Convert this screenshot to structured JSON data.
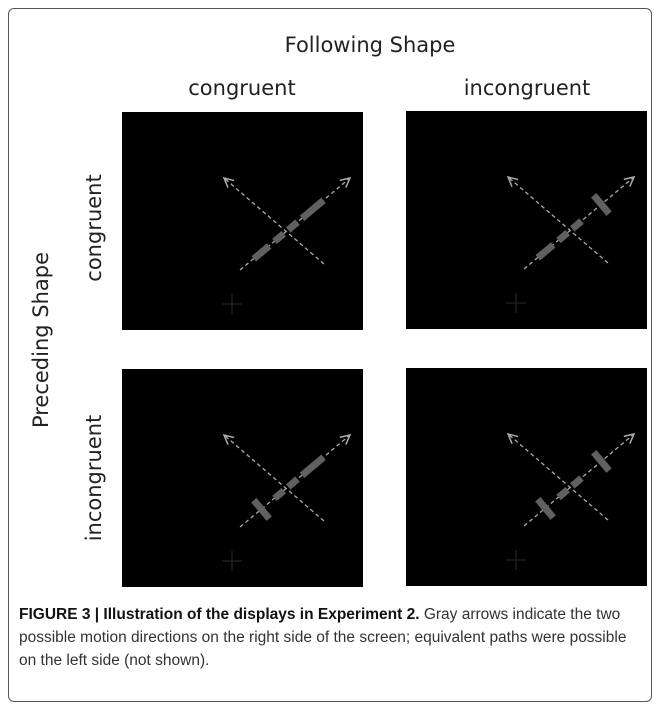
{
  "figure": {
    "title": "Following Shape",
    "columns": [
      "congruent",
      "incongruent"
    ],
    "row_title": "Preceding Shape",
    "rows": [
      "congruent",
      "incongruent"
    ],
    "caption": {
      "label": "FIGURE 3 | Illustration of the displays in Experiment 2.",
      "text": "Gray arrows indicate the two possible motion directions on the right side of the screen; equivalent paths were possible on the left side (not shown)."
    }
  }
}
